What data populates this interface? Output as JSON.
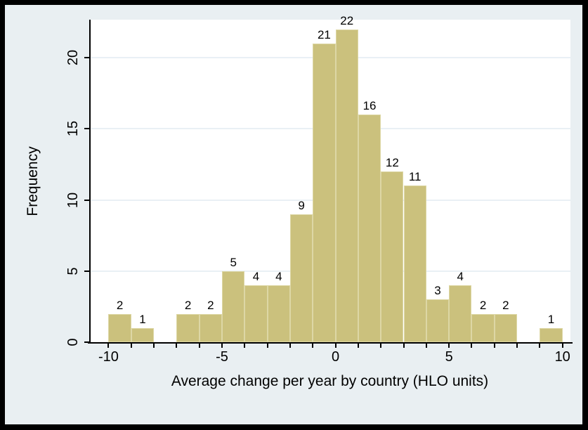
{
  "chart_data": {
    "type": "bar",
    "subtype": "histogram",
    "title": "",
    "xlabel": "Average change per year by country (HLO units)",
    "ylabel": "Frequency",
    "bin_width": 1,
    "bins": [
      {
        "start": -10,
        "end": -9,
        "count": 2
      },
      {
        "start": -9,
        "end": -8,
        "count": 1
      },
      {
        "start": -8,
        "end": -7,
        "count": 0
      },
      {
        "start": -7,
        "end": -6,
        "count": 2
      },
      {
        "start": -6,
        "end": -5,
        "count": 2
      },
      {
        "start": -5,
        "end": -4,
        "count": 5
      },
      {
        "start": -4,
        "end": -3,
        "count": 4
      },
      {
        "start": -3,
        "end": -2,
        "count": 4
      },
      {
        "start": -2,
        "end": -1,
        "count": 9
      },
      {
        "start": -1,
        "end": 0,
        "count": 21
      },
      {
        "start": 0,
        "end": 1,
        "count": 22
      },
      {
        "start": 1,
        "end": 2,
        "count": 16
      },
      {
        "start": 2,
        "end": 3,
        "count": 12
      },
      {
        "start": 3,
        "end": 4,
        "count": 11
      },
      {
        "start": 4,
        "end": 5,
        "count": 3
      },
      {
        "start": 5,
        "end": 6,
        "count": 4
      },
      {
        "start": 6,
        "end": 7,
        "count": 2
      },
      {
        "start": 7,
        "end": 8,
        "count": 2
      },
      {
        "start": 8,
        "end": 9,
        "count": 0
      },
      {
        "start": 9,
        "end": 10,
        "count": 1
      }
    ],
    "bar_value_labels_visible": true,
    "x_tick_label_values": [
      -10,
      -5,
      0,
      5,
      10
    ],
    "x_tick_labels": [
      "-10",
      "-5",
      "0",
      "5",
      "10"
    ],
    "x_minor_tick_step": 1,
    "x_minor_tick_range": [
      -10,
      10
    ],
    "y_tick_values": [
      0,
      5,
      10,
      15,
      20
    ],
    "y_tick_labels": [
      "0",
      "5",
      "10",
      "15",
      "20"
    ],
    "y_tick_label_rotation_deg": -90,
    "xlim": [
      -10.85,
      10.35
    ],
    "ylim": [
      0,
      22.67
    ],
    "grid": {
      "horizontal": true,
      "vertical": false
    },
    "legend": "none",
    "colors": {
      "bar_fill": "#CBC17D",
      "bar_outline": "#DDD7A5",
      "figure_background": "#E9EFF2",
      "plot_background": "#FFFFFF",
      "gridline": "#E9F0F5",
      "axis_line": "#000000",
      "text": "#000000",
      "frame_border": "#000000"
    }
  }
}
